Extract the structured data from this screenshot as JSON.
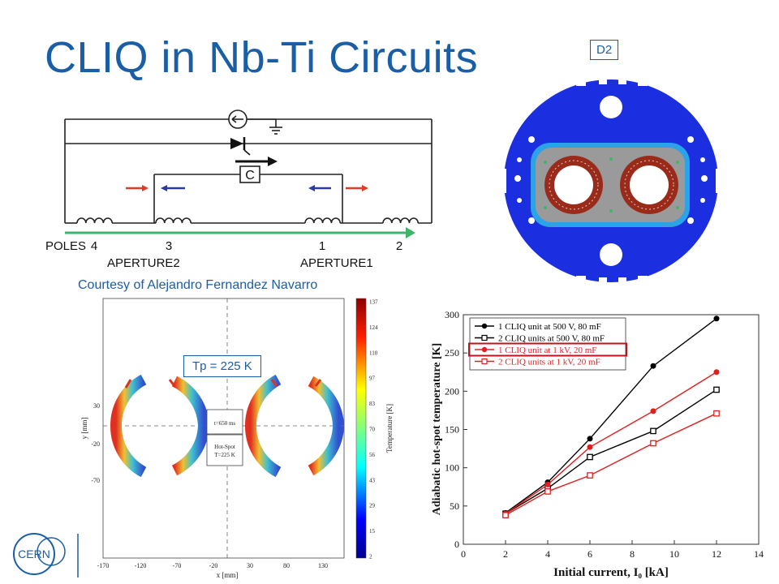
{
  "slide": {
    "title": "CLIQ in Nb-Ti Circuits",
    "d2_label": "D2",
    "courtesy": "Courtesy of Alejandro Fernandez Navarro",
    "tp_label": "Tp = 225 K",
    "logo_text": "CERN"
  },
  "circuit": {
    "capacitor_label": "C",
    "poles_label": "POLES",
    "pole_numbers": [
      "4",
      "3",
      "1",
      "2"
    ],
    "aperture_left": "APERTURE2",
    "aperture_right": "APERTURE1",
    "colors": {
      "red_arrow": "#e03a2a",
      "blue_arrow": "#2a3aa8",
      "green_arrow": "#3fb46a"
    }
  },
  "magnet": {
    "colors": {
      "yoke": "#1b2fe0",
      "collar_ring": "#2aa3e8",
      "collar": "#9a9a9a",
      "coil": "#9a2a1a"
    }
  },
  "temperature_map": {
    "colorbar_label": "Temperature [K]",
    "colorbar_ticks": [
      "137",
      "124",
      "110",
      "97",
      "83",
      "70",
      "56",
      "43",
      "29",
      "15",
      "2"
    ],
    "x_label": "x [mm]",
    "x_ticks": [
      "-170",
      "-120",
      "-70",
      "-20",
      "30",
      "80",
      "130"
    ],
    "y_label": "y [mm]",
    "y_ticks": [
      "30",
      "-20",
      "-70"
    ],
    "annotation_time": "t=650 ms",
    "annotation_hotspot_1": "Hot-Spot",
    "annotation_hotspot_2": "T=225 K"
  },
  "chart_data": {
    "type": "line",
    "title": "",
    "xlabel": "Initial current, I₀ [kA]",
    "ylabel": "Adiabatic hot-spot temperature [K]",
    "xlim": [
      0,
      14
    ],
    "ylim": [
      0,
      300
    ],
    "x_ticks": [
      0,
      2,
      4,
      6,
      8,
      10,
      12,
      14
    ],
    "y_ticks": [
      0,
      50,
      100,
      150,
      200,
      250,
      300
    ],
    "legend_position": "top-left",
    "highlighted_series": "1 CLIQ unit at 1 kV, 20 mF",
    "series": [
      {
        "name": "1 CLIQ unit at 500 V, 80 mF",
        "color": "#000000",
        "marker": "filled-circle",
        "x": [
          2,
          4,
          6,
          9,
          12
        ],
        "values": [
          41,
          81,
          138,
          233,
          295
        ]
      },
      {
        "name": "2 CLIQ units at 500 V, 80 mF",
        "color": "#000000",
        "marker": "open-square",
        "x": [
          2,
          4,
          6,
          9,
          12
        ],
        "values": [
          40,
          73,
          114,
          148,
          202
        ]
      },
      {
        "name": "1 CLIQ unit at 1 kV, 20 mF",
        "color": "#e02020",
        "marker": "filled-circle",
        "x": [
          2,
          4,
          6,
          9,
          12
        ],
        "values": [
          40,
          78,
          127,
          174,
          225
        ]
      },
      {
        "name": "2 CLIQ units at 1 kV, 20 mF",
        "color": "#e02020",
        "marker": "open-square",
        "x": [
          2,
          4,
          6,
          9,
          12
        ],
        "values": [
          38,
          69,
          90,
          132,
          171
        ]
      }
    ]
  }
}
